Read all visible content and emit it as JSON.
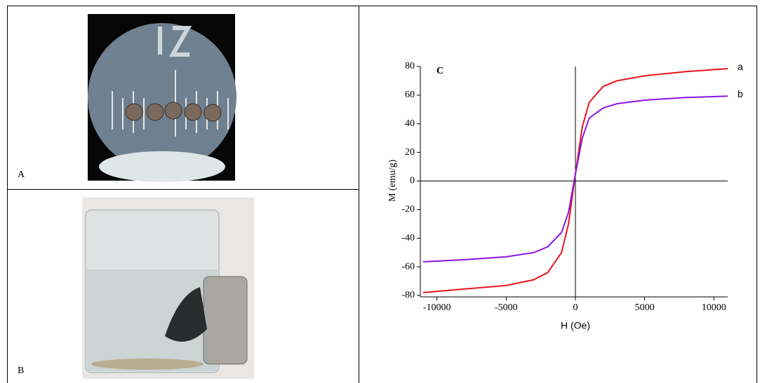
{
  "panels": {
    "a_label": "A",
    "b_label": "B"
  },
  "chart_data": {
    "type": "line",
    "panel_label": "C",
    "x_label": "H (Oe)",
    "y_label": "M (emu/g)",
    "x": [
      -11000,
      -8000,
      -5000,
      -3000,
      -2000,
      -1000,
      -500,
      0,
      500,
      1000,
      2000,
      3000,
      5000,
      8000,
      11000
    ],
    "series": [
      {
        "name": "a",
        "color": "#e8141a",
        "values": [
          -78,
          -75.5,
          -73,
          -69,
          -64,
          -50,
          -30,
          5,
          38,
          55,
          66,
          70,
          73.5,
          76.5,
          78.5
        ]
      },
      {
        "name": "b",
        "color": "#8a14e8",
        "values": [
          -56.5,
          -55,
          -53,
          -50,
          -46,
          -36,
          -22,
          5,
          30,
          44,
          51,
          54,
          56.5,
          58.3,
          59.3
        ]
      }
    ],
    "xlim": [
      -11200,
      11000
    ],
    "ylim": [
      -81,
      80
    ],
    "xticks": [
      -10000,
      -5000,
      0,
      5000,
      10000
    ],
    "yticks": [
      -80,
      -60,
      -40,
      -20,
      0,
      20,
      40,
      60,
      80
    ],
    "grid": false
  }
}
